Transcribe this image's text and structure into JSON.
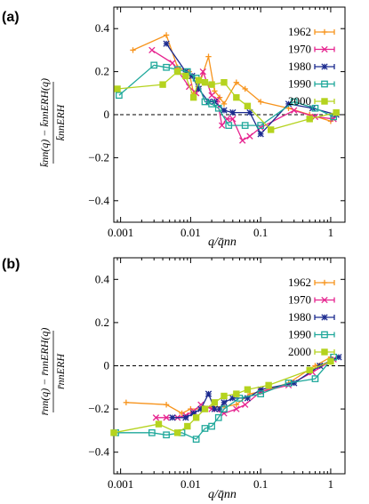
{
  "chart_data": [
    {
      "type": "line",
      "panel_label": "(a)",
      "xlabel": "q/q_nn",
      "xlabel_display": "q/q̄nn",
      "ylabel_display": "(k̄nn(q) − k̄nnERH(q)) / k̄nnERH",
      "xscale": "log",
      "xlim": [
        0.0008,
        1.6
      ],
      "ylim": [
        -0.5,
        0.5
      ],
      "xticks": [
        0.001,
        0.01,
        0.1,
        1
      ],
      "xtick_labels": [
        "0.001",
        "0.01",
        "0.1",
        "1"
      ],
      "yticks": [
        -0.4,
        -0.2,
        0,
        0.2,
        0.4
      ],
      "ytick_labels": [
        "−0.4",
        "−0.2",
        "0",
        "0.2",
        "0.4"
      ],
      "reference_line": 0,
      "grid": false,
      "legend_position": "top-right",
      "series": [
        {
          "name": "1962",
          "color": "#f7941d",
          "marker": "plus",
          "x": [
            0.0015,
            0.0045,
            0.0065,
            0.0095,
            0.011,
            0.013,
            0.018,
            0.022,
            0.026,
            0.03,
            0.045,
            0.06,
            0.1,
            0.25,
            0.5,
            1.0
          ],
          "y": [
            0.3,
            0.37,
            0.22,
            0.2,
            0.1,
            0.13,
            0.27,
            0.11,
            0.08,
            0.05,
            0.15,
            0.12,
            0.06,
            0.03,
            0.0,
            -0.03
          ]
        },
        {
          "name": "1970",
          "color": "#e6248f",
          "marker": "x",
          "x": [
            0.0028,
            0.0055,
            0.0095,
            0.012,
            0.015,
            0.02,
            0.024,
            0.028,
            0.033,
            0.04,
            0.055,
            0.07,
            0.1,
            0.3,
            0.6,
            1.1
          ],
          "y": [
            0.3,
            0.24,
            0.13,
            0.1,
            0.2,
            0.09,
            0.07,
            -0.05,
            -0.02,
            -0.02,
            -0.12,
            -0.1,
            -0.06,
            0.02,
            -0.01,
            -0.02
          ]
        },
        {
          "name": "1980",
          "color": "#1b2a8f",
          "marker": "star",
          "x": [
            0.0045,
            0.0085,
            0.0105,
            0.013,
            0.018,
            0.022,
            0.03,
            0.04,
            0.07,
            0.1,
            0.25,
            0.55,
            1.2
          ],
          "y": [
            0.33,
            0.2,
            0.18,
            0.12,
            0.06,
            0.06,
            0.02,
            0.01,
            0.01,
            -0.09,
            0.05,
            0.03,
            0.0
          ]
        },
        {
          "name": "1990",
          "color": "#1fa89b",
          "marker": "square",
          "x": [
            0.00095,
            0.003,
            0.0045,
            0.0065,
            0.009,
            0.012,
            0.016,
            0.02,
            0.025,
            0.035,
            0.06,
            0.1,
            0.3,
            0.6,
            1.1
          ],
          "y": [
            0.09,
            0.23,
            0.22,
            0.21,
            0.2,
            0.17,
            0.06,
            0.05,
            0.03,
            -0.05,
            -0.05,
            -0.05,
            0.06,
            0.03,
            -0.01
          ]
        },
        {
          "name": "2000",
          "color": "#b5d31f",
          "marker": "filled-square",
          "x": [
            0.0009,
            0.004,
            0.0065,
            0.0085,
            0.011,
            0.013,
            0.016,
            0.02,
            0.03,
            0.045,
            0.065,
            0.14,
            0.5,
            1.2
          ],
          "y": [
            0.12,
            0.14,
            0.2,
            0.18,
            0.08,
            0.16,
            0.15,
            0.14,
            0.15,
            0.08,
            0.04,
            -0.07,
            -0.02,
            0.01
          ]
        }
      ]
    },
    {
      "type": "line",
      "panel_label": "(b)",
      "xlabel": "q/q_nn",
      "xlabel_display": "q/q̄nn",
      "ylabel_display": "(r̄nn(q) − r̄nnERH(q)) / r̄nnERH",
      "xscale": "log",
      "xlim": [
        0.0008,
        1.6
      ],
      "ylim": [
        -0.5,
        0.5
      ],
      "xticks": [
        0.001,
        0.01,
        0.1,
        1
      ],
      "xtick_labels": [
        "0.001",
        "0.01",
        "0.1",
        "1"
      ],
      "yticks": [
        -0.4,
        -0.2,
        0,
        0.2,
        0.4
      ],
      "ytick_labels": [
        "−0.4",
        "−0.2",
        "0",
        "0.2",
        "0.4"
      ],
      "reference_line": 0,
      "grid": false,
      "legend_position": "top-right",
      "series": [
        {
          "name": "1962",
          "color": "#f7941d",
          "marker": "plus",
          "x": [
            0.0012,
            0.0045,
            0.0075,
            0.01,
            0.014,
            0.02,
            0.03,
            0.045,
            0.07,
            0.1,
            0.25,
            0.6,
            1.0
          ],
          "y": [
            -0.17,
            -0.18,
            -0.22,
            -0.2,
            -0.2,
            -0.19,
            -0.19,
            -0.18,
            -0.13,
            -0.12,
            -0.08,
            0.0,
            0.04
          ]
        },
        {
          "name": "1970",
          "color": "#e6248f",
          "marker": "x",
          "x": [
            0.0032,
            0.0045,
            0.0065,
            0.0085,
            0.011,
            0.014,
            0.02,
            0.03,
            0.045,
            0.06,
            0.1,
            0.25,
            0.55,
            1.1
          ],
          "y": [
            -0.24,
            -0.24,
            -0.24,
            -0.23,
            -0.21,
            -0.18,
            -0.2,
            -0.22,
            -0.2,
            -0.18,
            -0.12,
            -0.09,
            -0.03,
            0.03
          ]
        },
        {
          "name": "1980",
          "color": "#1b2a8f",
          "marker": "star",
          "x": [
            0.0055,
            0.0085,
            0.011,
            0.014,
            0.018,
            0.022,
            0.026,
            0.03,
            0.04,
            0.065,
            0.1,
            0.3,
            0.7,
            1.3
          ],
          "y": [
            -0.24,
            -0.24,
            -0.22,
            -0.2,
            -0.13,
            -0.2,
            -0.2,
            -0.17,
            -0.15,
            -0.15,
            -0.11,
            -0.08,
            0.0,
            0.04
          ]
        },
        {
          "name": "1990",
          "color": "#1fa89b",
          "marker": "square",
          "x": [
            0.00085,
            0.0028,
            0.0045,
            0.0075,
            0.012,
            0.016,
            0.02,
            0.025,
            0.03,
            0.05,
            0.1,
            0.25,
            0.6,
            1.1
          ],
          "y": [
            -0.31,
            -0.31,
            -0.32,
            -0.31,
            -0.34,
            -0.29,
            -0.28,
            -0.24,
            -0.2,
            -0.15,
            -0.13,
            -0.08,
            -0.06,
            0.04
          ]
        },
        {
          "name": "2000",
          "color": "#b5d31f",
          "marker": "filled-square",
          "x": [
            0.0008,
            0.0035,
            0.0065,
            0.009,
            0.012,
            0.016,
            0.022,
            0.03,
            0.045,
            0.065,
            0.13,
            0.5,
            1.0
          ],
          "y": [
            -0.31,
            -0.27,
            -0.31,
            -0.28,
            -0.24,
            -0.2,
            -0.17,
            -0.14,
            -0.13,
            -0.11,
            -0.09,
            -0.02,
            0.02
          ]
        }
      ]
    }
  ]
}
